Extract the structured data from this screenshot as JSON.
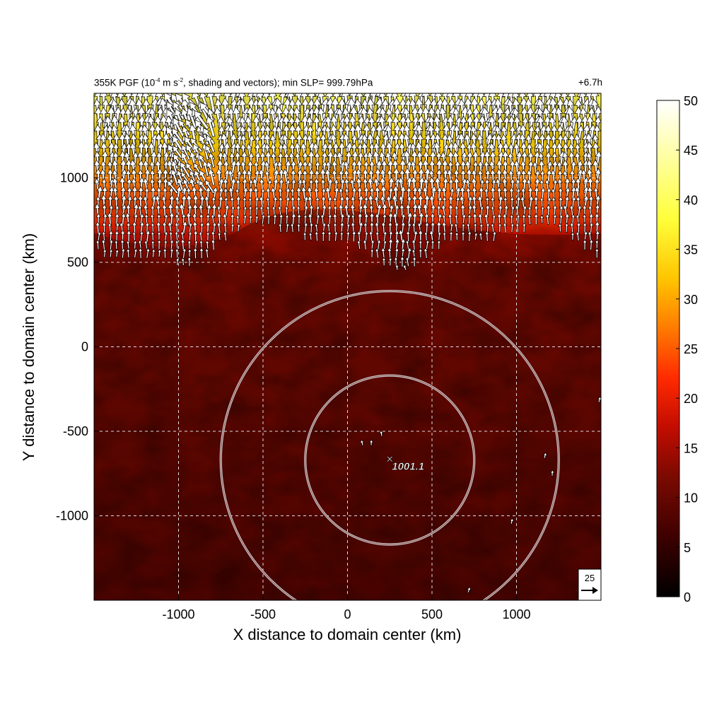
{
  "chart_data": {
    "type": "heatmap",
    "title": {
      "main_before_exp": "355K PGF (10",
      "exp1": "-4",
      "mid": " m s",
      "exp2": "-2",
      "after": ", shading and vectors); min SLP= 999.79hPa"
    },
    "time_label": "+6.7h",
    "xlabel": "X distance to domain center (km)",
    "ylabel": "Y distance to domain center (km)",
    "xlim": [
      -1500,
      1500
    ],
    "ylim": [
      -1500,
      1500
    ],
    "xticks": [
      -1000,
      -500,
      0,
      500,
      1000
    ],
    "xtick_labels": [
      "-1000",
      "-500",
      "0",
      "500",
      "1000"
    ],
    "yticks": [
      -1000,
      -500,
      0,
      500,
      1000
    ],
    "ytick_labels": [
      "-1000",
      "-500",
      "0",
      "500",
      "1000"
    ],
    "grid": "dashed",
    "colorbar": {
      "min": 0,
      "max": 50,
      "ticks": [
        0,
        5,
        10,
        15,
        20,
        25,
        30,
        35,
        40,
        45,
        50
      ],
      "tick_labels": [
        "0",
        "5",
        "10",
        "15",
        "20",
        "25",
        "30",
        "35",
        "40",
        "45",
        "50"
      ],
      "colormap": [
        "#000000",
        "#3d0000",
        "#7a0a00",
        "#c20c00",
        "#ff2a00",
        "#ff7a00",
        "#ffc400",
        "#ffff3a",
        "#ffffff"
      ]
    },
    "field_summary": {
      "description_values": "dark red 5-8 over most of the domain; 10-25 band near y=700; 25-45 in the north above y=900",
      "north_strong_band_y_min": 700,
      "background_value": 7
    },
    "circles": [
      {
        "center_x": 250,
        "center_y": -670,
        "radius_km": 500
      },
      {
        "center_x": 250,
        "center_y": -670,
        "radius_km": 1000
      }
    ],
    "center_marker": {
      "x": 250,
      "y": -670,
      "label": "1001.1"
    },
    "reference_vector": {
      "label": "25",
      "magnitude": 25
    }
  }
}
